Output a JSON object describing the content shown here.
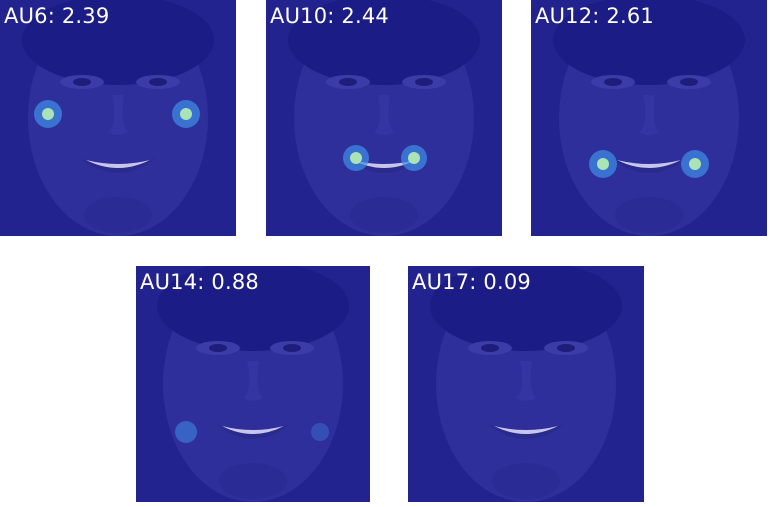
{
  "panels": [
    {
      "au": "AU6",
      "value": "2.39",
      "label": "AU6: 2.39",
      "highlight_region": "cheeks"
    },
    {
      "au": "AU10",
      "value": "2.44",
      "label": "AU10: 2.44",
      "highlight_region": "upper-lip-corners"
    },
    {
      "au": "AU12",
      "value": "2.61",
      "label": "AU12: 2.61",
      "highlight_region": "mouth-corners"
    },
    {
      "au": "AU14",
      "value": "0.88",
      "label": "AU14: 0.88",
      "highlight_region": "lower-mouth-corners"
    },
    {
      "au": "AU17",
      "value": "0.09",
      "label": "AU17: 0.09",
      "highlight_region": "none"
    }
  ],
  "colors": {
    "overlay": "#22238f",
    "hotspot_core": "#b7f0b0",
    "hotspot_mid": "#3f8ee8",
    "label_text": "#ffffff"
  }
}
